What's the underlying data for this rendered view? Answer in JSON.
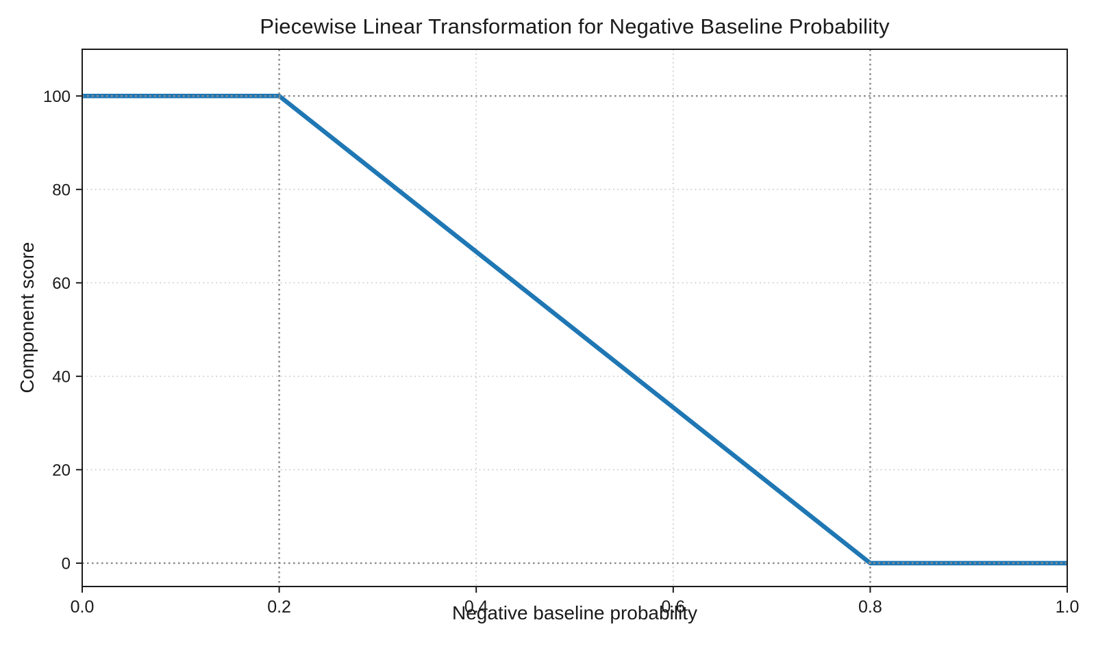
{
  "figure": {
    "background": "#ffffff",
    "text_color": "#1a1a1a"
  },
  "chart_data": {
    "type": "line",
    "title": "Piecewise Linear Transformation for Negative Baseline Probability",
    "xlabel": "Negative baseline probability",
    "ylabel": "Component score",
    "xlim": [
      0.0,
      1.0
    ],
    "ylim": [
      -5,
      110
    ],
    "x_ticks": {
      "values": [
        0.0,
        0.2,
        0.4,
        0.6,
        0.8,
        1.0
      ],
      "labels": [
        "0.0",
        "0.2",
        "0.4",
        "0.6",
        "0.8",
        "1.0"
      ]
    },
    "y_ticks": {
      "values": [
        0,
        20,
        40,
        60,
        80,
        100
      ],
      "labels": [
        "0",
        "20",
        "40",
        "60",
        "80",
        "100"
      ]
    },
    "grid": {
      "show": true,
      "style": "dotted",
      "color": "#c9c9c9",
      "x_values": [
        0.4,
        0.6
      ],
      "y_values": [
        20,
        40,
        60,
        80
      ]
    },
    "reference_lines": {
      "style": "dotted",
      "color": "#8f8f8f",
      "horizontal_y": [
        0,
        100
      ],
      "vertical_x": [
        0.2,
        0.8
      ]
    },
    "series": [
      {
        "name": "piecewise-transform",
        "color": "#1f77b4",
        "line_width": 6.5,
        "points": [
          [
            0.0,
            100
          ],
          [
            0.2,
            100
          ],
          [
            0.8,
            0
          ],
          [
            1.0,
            0
          ]
        ]
      }
    ],
    "legend": {
      "show": false
    },
    "axis_color": "#1a1a1a",
    "breakpoints": {
      "flat_high_until_x": 0.2,
      "flat_low_from_x": 0.8,
      "high_score": 100,
      "low_score": 0
    }
  }
}
